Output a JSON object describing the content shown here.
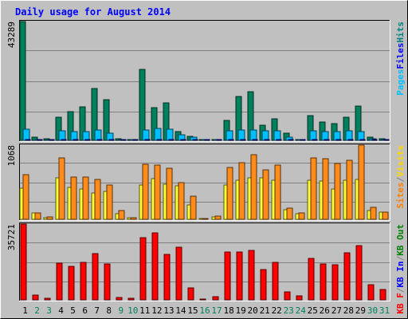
{
  "title": "Daily usage for August 2014",
  "chart_data": [
    {
      "type": "bar",
      "name": "hits-files-pages",
      "ymax_label": "43289",
      "ylim": [
        0,
        43289
      ],
      "legend_right": [
        {
          "text": "Pages",
          "color": "#00bfff"
        },
        {
          "text": "Files",
          "color": "#0000ff"
        },
        {
          "text": "Hits",
          "color": "#008080"
        }
      ],
      "series": [
        {
          "name": "Hits",
          "color": "#00805c",
          "values": [
            43289,
            1100,
            600,
            8300,
            10400,
            12300,
            19000,
            14800,
            500,
            400,
            26000,
            11800,
            13600,
            3300,
            1400,
            300,
            400,
            7300,
            15900,
            17600,
            5600,
            7800,
            2500,
            400,
            8900,
            6700,
            6000,
            8300,
            12400,
            1200,
            700
          ]
        },
        {
          "name": "Files",
          "color": "#00bfff",
          "values": [
            4100,
            400,
            300,
            3500,
            3100,
            3100,
            3700,
            2500,
            300,
            200,
            3900,
            4300,
            4200,
            2000,
            1100,
            200,
            200,
            3500,
            3700,
            3900,
            3400,
            3600,
            1100,
            300,
            3500,
            3300,
            3200,
            3500,
            3300,
            700,
            400
          ]
        },
        {
          "name": "Pages",
          "color": "#0000ff",
          "values": [
            200,
            100,
            100,
            200,
            200,
            200,
            200,
            200,
            100,
            100,
            200,
            200,
            200,
            100,
            100,
            100,
            100,
            200,
            200,
            200,
            200,
            200,
            100,
            100,
            200,
            200,
            200,
            200,
            200,
            100,
            100
          ]
        }
      ]
    },
    {
      "type": "bar",
      "name": "visits-sites",
      "ymax_label": "1068",
      "ylim": [
        0,
        1068
      ],
      "legend_right": [
        {
          "text": "Sites",
          "color": "#ff8000"
        },
        {
          "text": "/",
          "color": "#808080"
        },
        {
          "text": "Visits",
          "color": "#ffd700"
        }
      ],
      "series": [
        {
          "name": "Visits",
          "color": "#ffff33",
          "values": [
            452,
            95,
            25,
            599,
            456,
            437,
            382,
            398,
            80,
            28,
            496,
            589,
            509,
            481,
            208,
            10,
            33,
            496,
            564,
            596,
            593,
            564,
            142,
            80,
            557,
            556,
            437,
            563,
            570,
            132,
            105
          ]
        },
        {
          "name": "Sites",
          "color": "#ff8c1a",
          "values": [
            638,
            95,
            30,
            883,
            612,
            610,
            572,
            496,
            121,
            28,
            794,
            786,
            740,
            529,
            336,
            10,
            48,
            749,
            811,
            933,
            717,
            777,
            157,
            91,
            879,
            877,
            805,
            849,
            1068,
            169,
            108
          ]
        }
      ]
    },
    {
      "type": "bar",
      "name": "kbytes",
      "ymax_label": "35721",
      "ylim": [
        0,
        35721
      ],
      "legend_right": [
        {
          "text": "KB F",
          "color": "#ff0000"
        },
        {
          "text": "/",
          "color": "#808080"
        },
        {
          "text": "KB In",
          "color": "#0000ff"
        },
        {
          "text": "/",
          "color": "#808080"
        },
        {
          "text": "KB Out",
          "color": "#008000"
        }
      ],
      "series": [
        {
          "name": "KB F",
          "color": "#ff0000",
          "values": [
            35721,
            2200,
            800,
            17200,
            15700,
            17500,
            21900,
            17000,
            1200,
            700,
            29400,
            31500,
            21300,
            25000,
            5700,
            200,
            1600,
            22600,
            22500,
            23300,
            14200,
            17800,
            3900,
            1900,
            19400,
            16800,
            16600,
            22300,
            25700,
            7000,
            4900
          ]
        }
      ]
    }
  ],
  "x_days": [
    {
      "label": "1",
      "weekend": false
    },
    {
      "label": "2",
      "weekend": true
    },
    {
      "label": "3",
      "weekend": true
    },
    {
      "label": "4",
      "weekend": false
    },
    {
      "label": "5",
      "weekend": false
    },
    {
      "label": "6",
      "weekend": false
    },
    {
      "label": "7",
      "weekend": false
    },
    {
      "label": "8",
      "weekend": false
    },
    {
      "label": "9",
      "weekend": true
    },
    {
      "label": "10",
      "weekend": true
    },
    {
      "label": "11",
      "weekend": false
    },
    {
      "label": "12",
      "weekend": false
    },
    {
      "label": "13",
      "weekend": false
    },
    {
      "label": "14",
      "weekend": false
    },
    {
      "label": "15",
      "weekend": false
    },
    {
      "label": "16",
      "weekend": true
    },
    {
      "label": "17",
      "weekend": true
    },
    {
      "label": "18",
      "weekend": false
    },
    {
      "label": "19",
      "weekend": false
    },
    {
      "label": "20",
      "weekend": false
    },
    {
      "label": "21",
      "weekend": false
    },
    {
      "label": "22",
      "weekend": false
    },
    {
      "label": "23",
      "weekend": true
    },
    {
      "label": "24",
      "weekend": true
    },
    {
      "label": "25",
      "weekend": false
    },
    {
      "label": "26",
      "weekend": false
    },
    {
      "label": "27",
      "weekend": false
    },
    {
      "label": "28",
      "weekend": false
    },
    {
      "label": "29",
      "weekend": false
    },
    {
      "label": "30",
      "weekend": true
    },
    {
      "label": "31",
      "weekend": true
    }
  ],
  "colors": {
    "background": "#c0c0c0",
    "title": "#0000ff",
    "weekday_label": "#000000",
    "weekend_label": "#00805c",
    "gridline": "#808080"
  }
}
